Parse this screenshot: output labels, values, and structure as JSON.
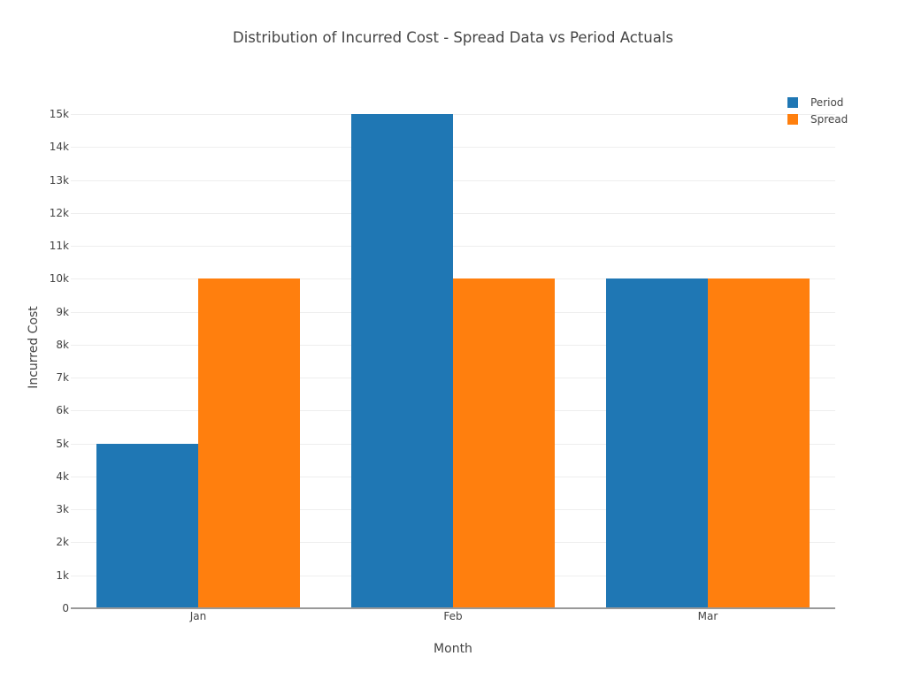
{
  "chart_data": {
    "type": "bar",
    "title": "Distribution of Incurred Cost - Spread Data vs Period Actuals",
    "xlabel": "Month",
    "ylabel": "Incurred Cost",
    "categories": [
      "Jan",
      "Feb",
      "Mar"
    ],
    "series": [
      {
        "name": "Period",
        "color": "#1f77b4",
        "values": [
          5000,
          15000,
          10000
        ]
      },
      {
        "name": "Spread",
        "color": "#ff7f0e",
        "values": [
          10000,
          10000,
          10000
        ]
      }
    ],
    "ylim": [
      0,
      15000
    ],
    "yticks": [
      0,
      1000,
      2000,
      3000,
      4000,
      5000,
      6000,
      7000,
      8000,
      9000,
      10000,
      11000,
      12000,
      13000,
      14000,
      15000
    ],
    "ytick_labels": [
      "0",
      "1k",
      "2k",
      "3k",
      "4k",
      "5k",
      "6k",
      "7k",
      "8k",
      "9k",
      "10k",
      "11k",
      "12k",
      "13k",
      "14k",
      "15k"
    ],
    "grid": true,
    "legend_position": "top-right",
    "barmode": "group"
  },
  "legend": {
    "items": [
      {
        "label": "Period",
        "color": "#1f77b4"
      },
      {
        "label": "Spread",
        "color": "#ff7f0e"
      }
    ]
  }
}
